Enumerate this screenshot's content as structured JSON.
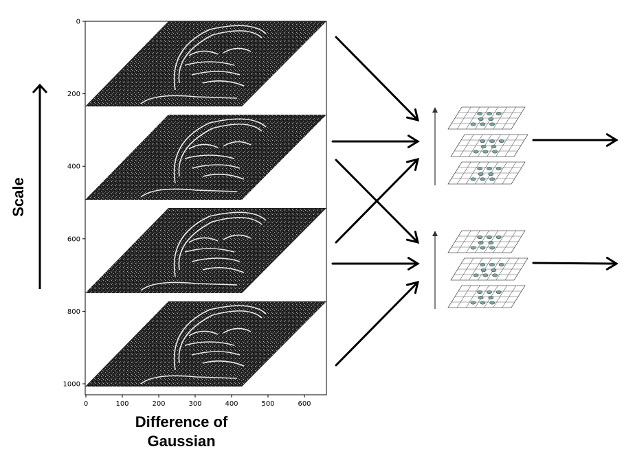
{
  "axis_label_y": "Scale",
  "axis_label_x_line1": "Difference of",
  "axis_label_x_line2": "Gaussian",
  "y_ticks": [
    "0",
    "200",
    "400",
    "600",
    "800",
    "1000"
  ],
  "x_ticks": [
    "0",
    "100",
    "200",
    "300",
    "400",
    "500",
    "600"
  ],
  "layers": [
    {
      "name": "dog-layer-1"
    },
    {
      "name": "dog-layer-2"
    },
    {
      "name": "dog-layer-3"
    },
    {
      "name": "dog-layer-4"
    }
  ],
  "colors": {
    "arrow": "#000000",
    "grid": "#555555",
    "keypoint": "#7fa39a",
    "keypoint_stroke": "#2f4f4f",
    "scale_arrow": "#333333"
  }
}
